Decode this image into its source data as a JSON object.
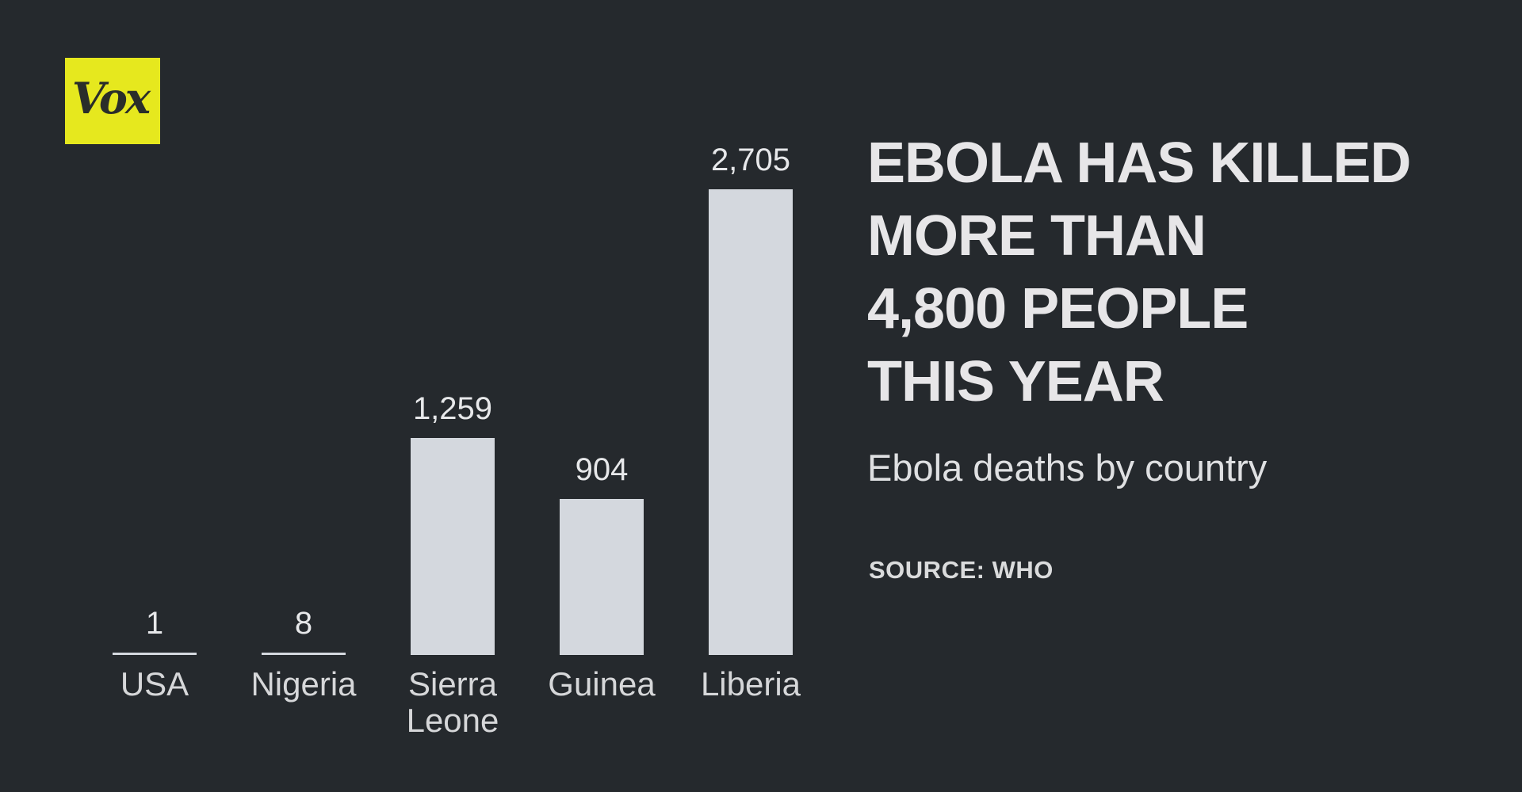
{
  "brand": {
    "logo_text": "Vox",
    "logo_bg": "#e6e81e",
    "logo_fg": "#2a2e2a"
  },
  "headline": {
    "lines": [
      "EBOLA HAS KILLED",
      "MORE THAN",
      "4,800 PEOPLE",
      "THIS YEAR"
    ]
  },
  "subtitle": "Ebola deaths by country",
  "source": "SOURCE: WHO",
  "colors": {
    "background": "#25292d",
    "bar": "#d4d8de",
    "value_label": "#e7e8ea",
    "category_label": "#d6d7d9",
    "headline": "#e7e6e8",
    "subtitle": "#dfe0e2",
    "source": "#dadbdc"
  },
  "chart_data": {
    "type": "bar",
    "categories": [
      "USA",
      "Nigeria",
      "Sierra Leone",
      "Guinea",
      "Liberia"
    ],
    "values": [
      1,
      8,
      1259,
      904,
      2705
    ],
    "value_labels": [
      "1",
      "8",
      "1,259",
      "904",
      "2,705"
    ],
    "title": "Ebola deaths by country",
    "xlabel": "",
    "ylabel": "",
    "ylim": [
      0,
      2705
    ],
    "grid": false,
    "legend": "none",
    "bar_color": "#d4d8de",
    "orientation": "vertical",
    "value_labels_position": "above-bars",
    "category_labels_position": "below-baseline"
  }
}
